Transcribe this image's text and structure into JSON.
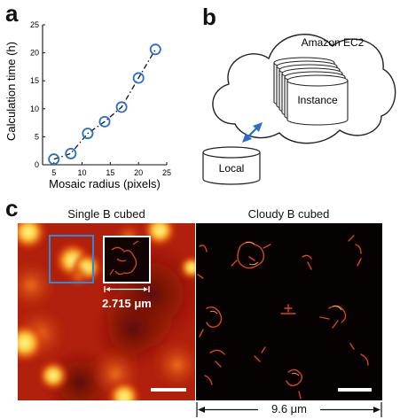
{
  "panels": {
    "a": {
      "letter": "a"
    },
    "b": {
      "letter": "b",
      "cloud_label": "Amazon EC2",
      "instance_label": "Instance",
      "local_label": "Local"
    },
    "c": {
      "letter": "c",
      "left_title": "Single B cubed",
      "right_title": "Cloudy B cubed",
      "inset_measure": "2.715 μm",
      "bottom_measure": "9.6 μm",
      "colors": {
        "inset_box": "#2a8bd8",
        "scale_bar": "#ffffff"
      }
    }
  },
  "chart_data": {
    "type": "scatter",
    "xlabel": "Mosaic radius (pixels)",
    "ylabel": "Calculation time (h)",
    "xlim": [
      3,
      25
    ],
    "ylim": [
      0,
      25
    ],
    "xticks": [
      5,
      10,
      15,
      20,
      25
    ],
    "yticks": [
      0,
      5,
      10,
      15,
      20,
      25
    ],
    "x": [
      5,
      8,
      11,
      14,
      17,
      20,
      23
    ],
    "y": [
      1.0,
      2.0,
      5.6,
      7.7,
      10.3,
      15.5,
      20.6
    ],
    "marker": "open-circle",
    "marker_color": "#2a6fc4",
    "line_style": "dash-dot",
    "grid": false,
    "legend": "none"
  }
}
